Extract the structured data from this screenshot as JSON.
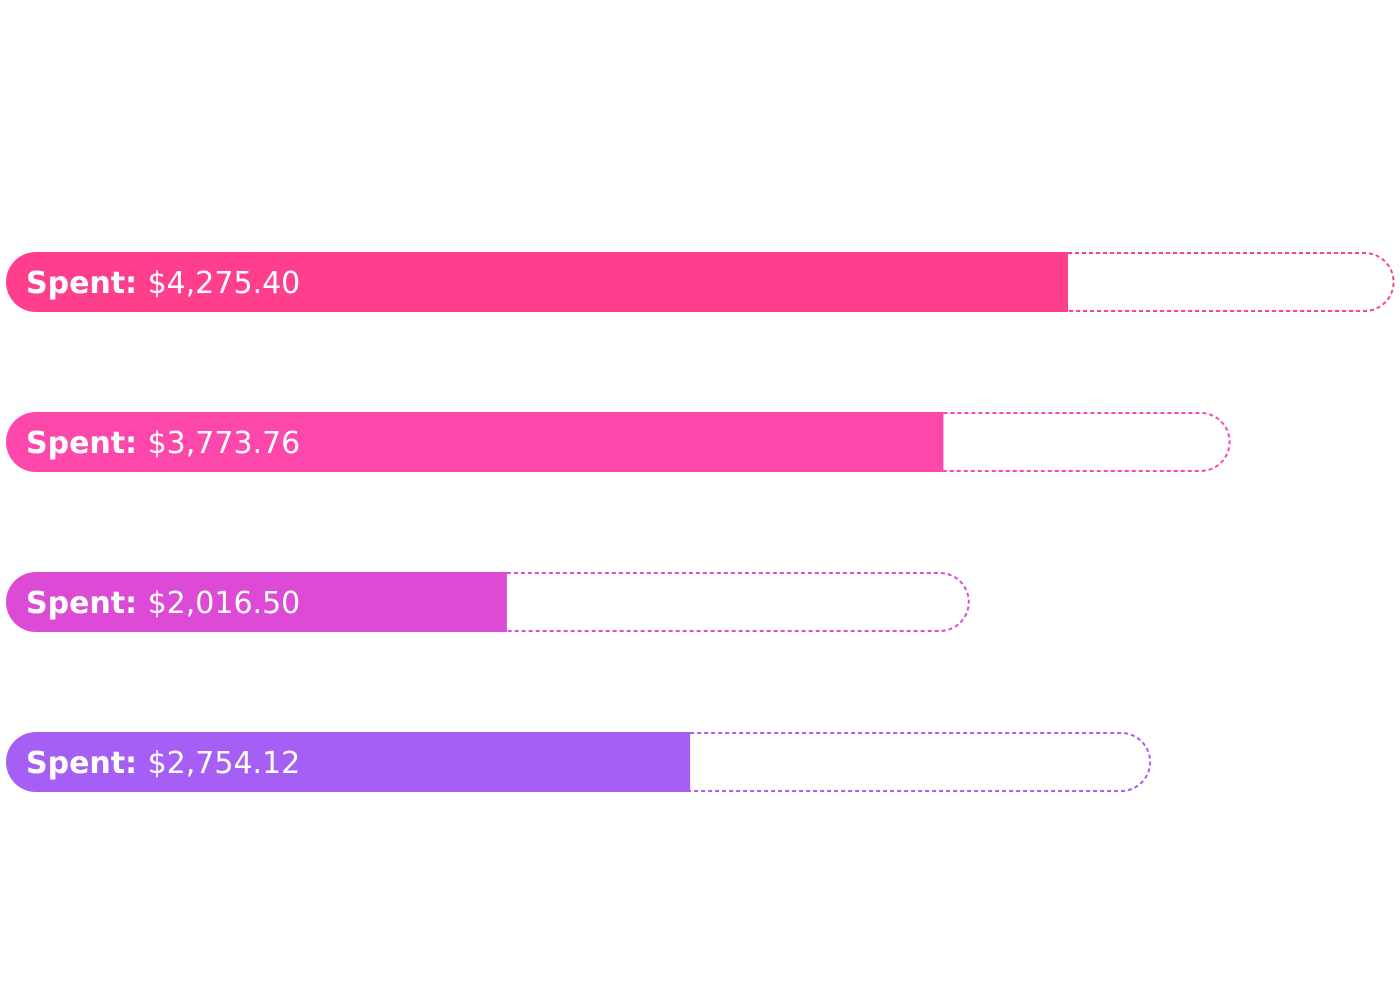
{
  "chart_data": {
    "type": "bar",
    "orientation": "horizontal",
    "label_prefix": "Spent:",
    "bars": [
      {
        "spent": 4275.4,
        "spent_label": "$4,275.40",
        "budget": 5590,
        "color": "#ff3f8e"
      },
      {
        "spent": 3773.76,
        "spent_label": "$3,773.76",
        "budget": 4930,
        "color": "#fd47aa"
      },
      {
        "spent": 2016.5,
        "spent_label": "$2,016.50",
        "budget": 3880,
        "color": "#dc4ad6"
      },
      {
        "spent": 2754.12,
        "spent_label": "$2,754.12",
        "budget": 4610,
        "color": "#a55ff4"
      }
    ]
  }
}
